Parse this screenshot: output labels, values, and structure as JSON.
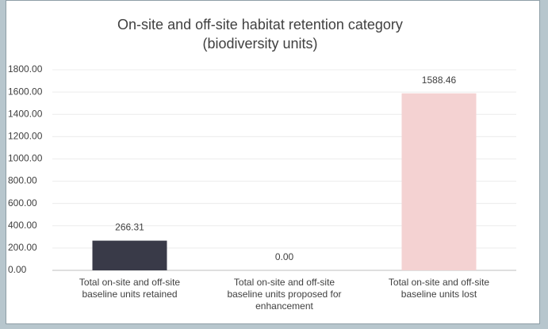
{
  "chart_data": {
    "type": "bar",
    "title": "On-site and off-site habitat retention category (biodiversity units)",
    "categories": [
      "Total on-site and off-site baseline units retained",
      "Total on-site and off-site baseline units proposed for enhancement",
      "Total on-site and off-site baseline units lost"
    ],
    "values": [
      266.31,
      0,
      1588.46
    ],
    "value_labels": [
      "266.31",
      "0.00",
      "1588.46"
    ],
    "colors": [
      "#393a48",
      "#9aa6c4",
      "#f4d2d2"
    ],
    "ylim": [
      0,
      1800
    ],
    "yticks": [
      {
        "value": 0,
        "label": "0.00"
      },
      {
        "value": 200,
        "label": "200.00"
      },
      {
        "value": 400,
        "label": "400.00"
      },
      {
        "value": 600,
        "label": "600.00"
      },
      {
        "value": 800,
        "label": "800.00"
      },
      {
        "value": 1000,
        "label": "1000.00"
      },
      {
        "value": 1200,
        "label": "1200.00"
      },
      {
        "value": 1400,
        "label": "1400.00"
      },
      {
        "value": 1600,
        "label": "1600.00"
      },
      {
        "value": 1800,
        "label": "1800.00"
      }
    ],
    "grid": true
  }
}
